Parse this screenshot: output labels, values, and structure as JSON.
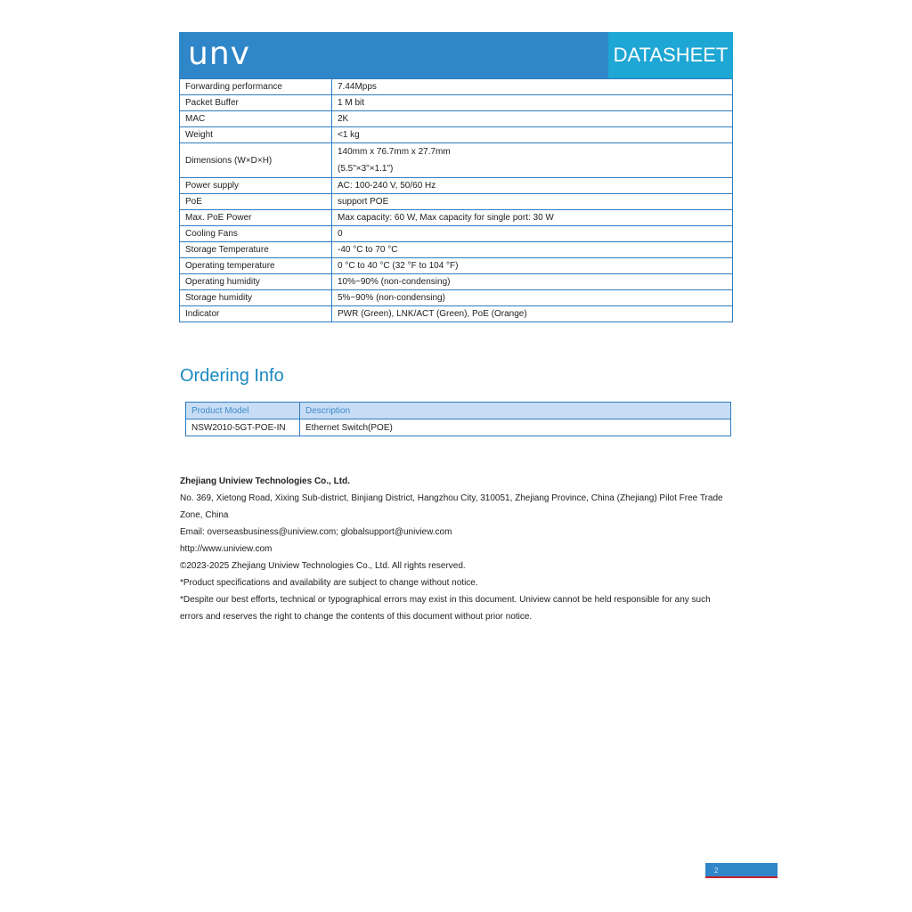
{
  "header": {
    "logo": "unv",
    "badge": "DATASHEET",
    "color": "#2f86c8",
    "badge_color": "#1ea6d4"
  },
  "specs": [
    {
      "key": "Forwarding performance",
      "value": [
        "7.44Mpps"
      ]
    },
    {
      "key": "Packet Buffer",
      "value": [
        "1 M bit"
      ]
    },
    {
      "key": "MAC",
      "value": [
        "2K"
      ]
    },
    {
      "key": "Weight",
      "value": [
        "<1 kg"
      ]
    },
    {
      "key": "Dimensions (W×D×H)",
      "value": [
        "140mm x 76.7mm x 27.7mm",
        "(5.5\"×3\"×1.1\")"
      ]
    },
    {
      "key": "Power supply",
      "value": [
        "AC: 100-240 V, 50/60 Hz"
      ]
    },
    {
      "key": "PoE",
      "value": [
        "support POE"
      ]
    },
    {
      "key": "Max. PoE Power",
      "value": [
        "Max capacity: 60 W, Max capacity for single port: 30 W"
      ]
    },
    {
      "key": "Cooling Fans",
      "value": [
        "0"
      ]
    },
    {
      "key": "Storage Temperature",
      "value": [
        "-40 °C to 70 °C"
      ]
    },
    {
      "key": "Operating temperature",
      "value": [
        "0 °C to 40 °C (32 °F to 104 °F)"
      ]
    },
    {
      "key": "Operating humidity",
      "value": [
        "10%~90% (non-condensing)"
      ]
    },
    {
      "key": "Storage humidity",
      "value": [
        "5%~90% (non-condensing)"
      ]
    },
    {
      "key": "Indicator",
      "value": [
        "PWR (Green),    LNK/ACT (Green),    PoE (Orange)"
      ]
    }
  ],
  "ordering": {
    "title": "Ordering Info",
    "headers": [
      "Product Model",
      "Description"
    ],
    "rows": [
      [
        "NSW2010-5GT-POE-IN",
        "Ethernet Switch(POE)"
      ]
    ]
  },
  "footer": {
    "company": "Zhejiang Uniview Technologies Co., Ltd.",
    "lines": [
      "No. 369, Xietong Road, Xixing Sub-district, Binjiang District, Hangzhou City, 310051, Zhejiang Province, China (Zhejiang) Pilot Free Trade",
      "Zone, China",
      "Email: overseasbusiness@uniview.com; globalsupport@uniview.com",
      "http://www.uniview.com",
      "©2023-2025  Zhejiang Uniview Technologies Co., Ltd. All rights reserved.",
      "*Product specifications and availability are subject to change without notice.",
      "*Despite our best efforts, technical or typographical errors may exist in this document. Uniview cannot be held responsible for any such",
      "errors and reserves the right to change the contents of this document without prior notice."
    ]
  },
  "page_number": "2"
}
